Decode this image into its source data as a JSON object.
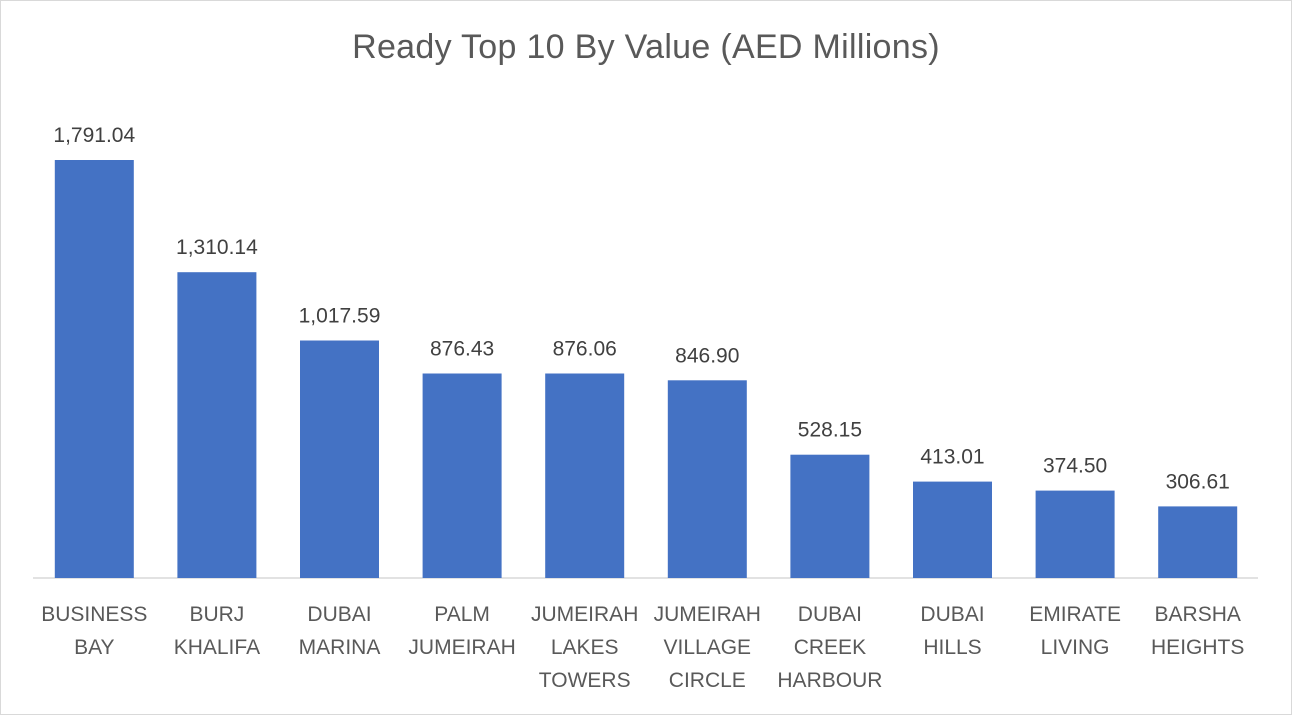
{
  "chart_data": {
    "type": "bar",
    "title": "Ready Top 10 By Value (AED Millions)",
    "categories": [
      "BUSINESS BAY",
      "BURJ KHALIFA",
      "DUBAI MARINA",
      "PALM JUMEIRAH",
      "JUMEIRAH LAKES TOWERS",
      "JUMEIRAH VILLAGE CIRCLE",
      "DUBAI CREEK HARBOUR",
      "DUBAI HILLS",
      "EMIRATE LIVING",
      "BARSHA HEIGHTS"
    ],
    "category_lines": [
      [
        "BUSINESS",
        "BAY"
      ],
      [
        "BURJ",
        "KHALIFA"
      ],
      [
        "DUBAI",
        "MARINA"
      ],
      [
        "PALM",
        "JUMEIRAH"
      ],
      [
        "JUMEIRAH",
        "LAKES",
        "TOWERS"
      ],
      [
        "JUMEIRAH",
        "VILLAGE",
        "CIRCLE"
      ],
      [
        "DUBAI",
        "CREEK",
        "HARBOUR"
      ],
      [
        "DUBAI",
        "HILLS"
      ],
      [
        "EMIRATE",
        "LIVING"
      ],
      [
        "BARSHA",
        "HEIGHTS"
      ]
    ],
    "values": [
      1791.04,
      1310.14,
      1017.59,
      876.43,
      876.06,
      846.9,
      528.15,
      413.01,
      374.5,
      306.61
    ],
    "data_labels": [
      "1,791.04",
      "1,310.14",
      "1,017.59",
      "876.43",
      "876.06",
      "846.90",
      "528.15",
      "413.01",
      "374.50",
      "306.61"
    ],
    "xlabel": "",
    "ylabel": "",
    "grid": false,
    "bar_color": "#4472C4"
  }
}
